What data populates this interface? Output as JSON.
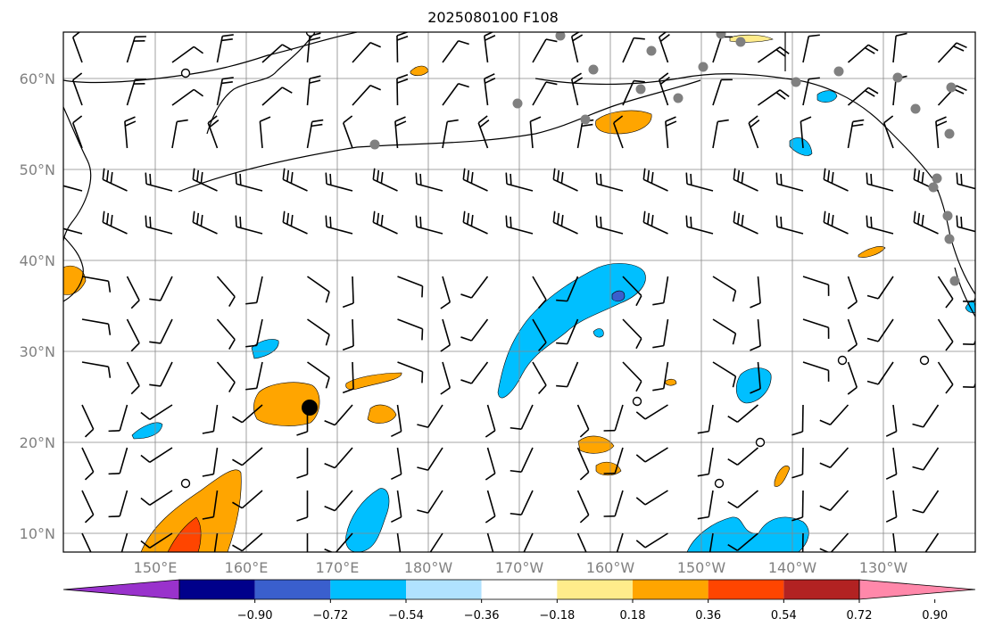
{
  "title": "2025080100 F108",
  "latitude_labels": [
    "60°N",
    "50°N",
    "40°N",
    "30°N",
    "20°N",
    "10°N"
  ],
  "longitude_labels": [
    "150°E",
    "160°E",
    "170°E",
    "180°W",
    "170°W",
    "160°W",
    "150°W",
    "140°W",
    "130°W"
  ],
  "colorbar": {
    "tick_labels": [
      "−0.90",
      "−0.72",
      "−0.54",
      "−0.36",
      "−0.18",
      "0.18",
      "0.36",
      "0.54",
      "0.72",
      "0.90"
    ],
    "colors": [
      "#9932cc",
      "#00008b",
      "#3a5fcd",
      "#00bfff",
      "#b0e2ff",
      "#ffffff",
      "#ffec8b",
      "#ffa500",
      "#ff4500",
      "#b22222",
      "#ff88aa"
    ]
  },
  "colors": {
    "positive_fill": "#ffa500",
    "positive_light": "#ffec8b",
    "positive_strong": "#ff4500",
    "negative_fill": "#00bfff",
    "negative_light": "#b0e2ff",
    "negative_strong": "#3a5fcd",
    "station_marker": "#808080",
    "storm_marker": "#000000"
  }
}
